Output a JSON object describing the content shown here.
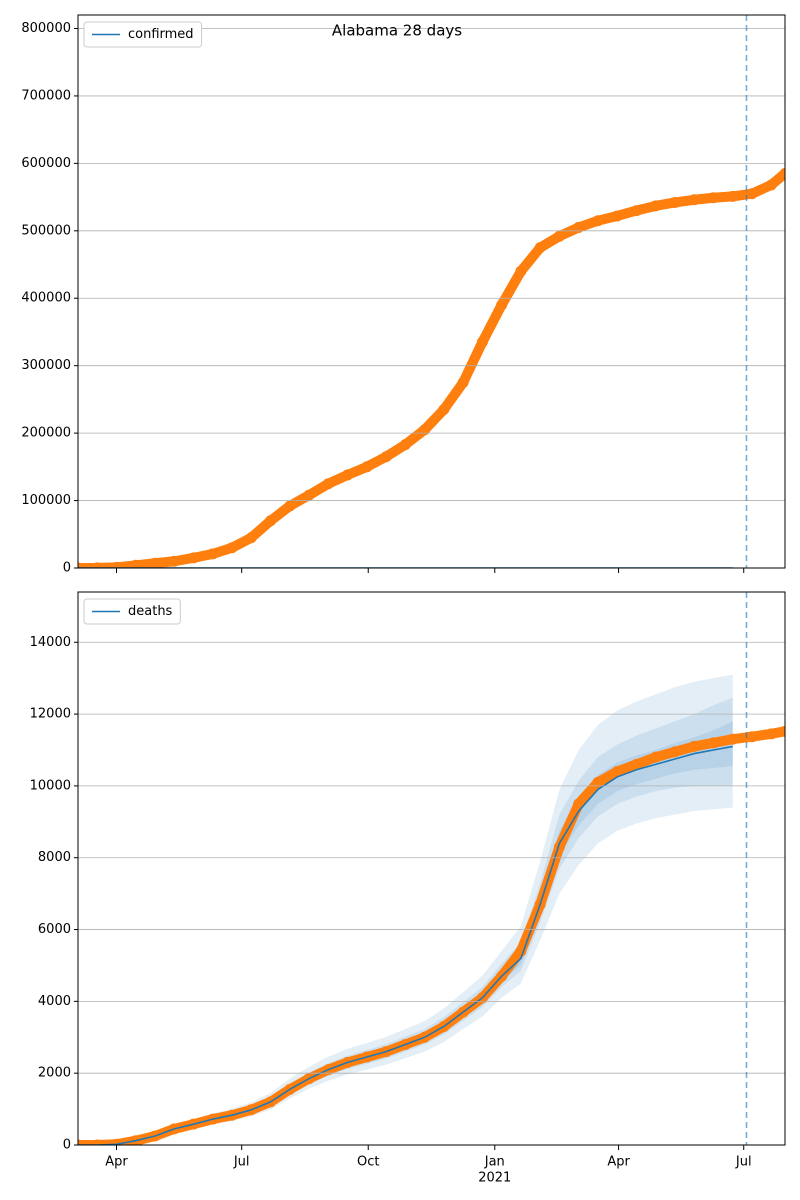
{
  "chart_data": [
    {
      "type": "line",
      "title": "Alabama 28 days",
      "x": [
        "2020-03-04",
        "2020-03-18",
        "2020-04-01",
        "2020-04-15",
        "2020-04-29",
        "2020-05-13",
        "2020-05-27",
        "2020-06-10",
        "2020-06-24",
        "2020-07-08",
        "2020-07-22",
        "2020-08-05",
        "2020-08-19",
        "2020-09-02",
        "2020-09-16",
        "2020-09-30",
        "2020-10-14",
        "2020-10-28",
        "2020-11-11",
        "2020-11-25",
        "2020-12-09",
        "2020-12-23",
        "2021-01-06",
        "2021-01-20",
        "2021-02-03",
        "2021-02-17",
        "2021-03-03",
        "2021-03-17",
        "2021-03-31",
        "2021-04-14",
        "2021-04-28",
        "2021-05-12",
        "2021-05-26",
        "2021-06-09",
        "2021-06-23",
        "2021-07-07",
        "2021-07-21",
        "2021-07-31"
      ],
      "series": [
        {
          "name": "confirmed",
          "color": "#1f77b4",
          "values": [
            0,
            0,
            0,
            0,
            0,
            0,
            0,
            0,
            0,
            0,
            0,
            0,
            0,
            0,
            0,
            0,
            0,
            0,
            0,
            0,
            0,
            0,
            0,
            0,
            0,
            0,
            0,
            0,
            0,
            0,
            0,
            0,
            0,
            0,
            0,
            null,
            null,
            null
          ]
        }
      ],
      "points": {
        "color": "#ff7f0e",
        "values": [
          0,
          100,
          1000,
          4000,
          7000,
          10000,
          15000,
          21000,
          30000,
          45000,
          70000,
          92000,
          108000,
          125000,
          138000,
          150000,
          165000,
          183000,
          205000,
          235000,
          275000,
          335000,
          390000,
          440000,
          475000,
          492000,
          505000,
          515000,
          522000,
          530000,
          537000,
          542000,
          546000,
          549000,
          551000,
          555000,
          568000,
          585000
        ]
      },
      "xlim": [
        "2020-03-04",
        "2021-07-31"
      ],
      "xticks": [
        "2020-04-01",
        "2020-07-01",
        "2020-10-01",
        "2021-01-01",
        "2021-04-01",
        "2021-07-01"
      ],
      "ylim": [
        0,
        820000
      ],
      "yticks": [
        0,
        100000,
        200000,
        300000,
        400000,
        500000,
        600000,
        700000,
        800000
      ],
      "grid": true,
      "legend": "upper left",
      "vline": "2021-07-03"
    },
    {
      "type": "line",
      "x": [
        "2020-03-04",
        "2020-03-18",
        "2020-04-01",
        "2020-04-15",
        "2020-04-29",
        "2020-05-13",
        "2020-05-27",
        "2020-06-10",
        "2020-06-24",
        "2020-07-08",
        "2020-07-22",
        "2020-08-05",
        "2020-08-19",
        "2020-09-02",
        "2020-09-16",
        "2020-09-30",
        "2020-10-14",
        "2020-10-28",
        "2020-11-11",
        "2020-11-25",
        "2020-12-09",
        "2020-12-23",
        "2021-01-06",
        "2021-01-20",
        "2021-02-03",
        "2021-02-17",
        "2021-03-03",
        "2021-03-17",
        "2021-03-31",
        "2021-04-14",
        "2021-04-28",
        "2021-05-12",
        "2021-05-26",
        "2021-06-09",
        "2021-06-23",
        "2021-07-07",
        "2021-07-21",
        "2021-07-31"
      ],
      "series": [
        {
          "name": "deaths",
          "color": "#1f77b4",
          "values": [
            0,
            0,
            20,
            120,
            250,
            450,
            580,
            720,
            830,
            980,
            1200,
            1550,
            1850,
            2100,
            2300,
            2450,
            2600,
            2800,
            3000,
            3300,
            3700,
            4100,
            4700,
            5200,
            6700,
            8400,
            9300,
            9900,
            10250,
            10450,
            10600,
            10750,
            10900,
            11000,
            11100,
            null,
            null,
            null
          ]
        }
      ],
      "bands": [
        {
          "lower": [
            0,
            0,
            10,
            90,
            190,
            350,
            460,
            580,
            670,
            800,
            990,
            1300,
            1570,
            1790,
            1970,
            2100,
            2240,
            2420,
            2600,
            2870,
            3230,
            3580,
            4100,
            4500,
            5700,
            7000,
            7800,
            8400,
            8750,
            8950,
            9100,
            9200,
            9300,
            9350,
            9400,
            null,
            null,
            null
          ],
          "upper": [
            0,
            0,
            30,
            160,
            320,
            560,
            720,
            880,
            1010,
            1190,
            1450,
            1850,
            2180,
            2460,
            2680,
            2840,
            3010,
            3230,
            3450,
            3800,
            4250,
            4720,
            5400,
            6100,
            7900,
            9900,
            11000,
            11700,
            12100,
            12350,
            12550,
            12750,
            12900,
            13000,
            13100,
            null,
            null,
            null
          ]
        },
        {
          "lower": [
            0,
            0,
            15,
            105,
            220,
            400,
            520,
            650,
            750,
            890,
            1100,
            1420,
            1700,
            1930,
            2120,
            2260,
            2410,
            2600,
            2800,
            3080,
            3460,
            3840,
            4400,
            4850,
            6200,
            7700,
            8550,
            9150,
            9500,
            9700,
            9850,
            9950,
            10000,
            10000,
            10000,
            null,
            null,
            null
          ],
          "upper": [
            0,
            0,
            25,
            140,
            285,
            510,
            650,
            800,
            920,
            1080,
            1320,
            1700,
            2020,
            2280,
            2490,
            2650,
            2810,
            3020,
            3230,
            3560,
            3980,
            4400,
            5050,
            5650,
            7300,
            9200,
            10150,
            10800,
            11150,
            11400,
            11600,
            11800,
            12000,
            12250,
            12450,
            null,
            null,
            null
          ]
        },
        {
          "lower": [
            0,
            0,
            18,
            112,
            235,
            425,
            550,
            685,
            790,
            935,
            1150,
            1485,
            1775,
            2015,
            2210,
            2355,
            2505,
            2700,
            2900,
            3190,
            3580,
            3970,
            4550,
            5020,
            6450,
            8050,
            8900,
            9500,
            9850,
            10050,
            10200,
            10350,
            10450,
            10500,
            10550,
            null,
            null,
            null
          ],
          "upper": [
            0,
            0,
            22,
            128,
            265,
            475,
            610,
            755,
            870,
            1025,
            1250,
            1615,
            1925,
            2185,
            2390,
            2545,
            2695,
            2900,
            3100,
            3410,
            3820,
            4230,
            4850,
            5400,
            6950,
            8750,
            9700,
            10300,
            10650,
            10850,
            11000,
            11200,
            11350,
            11550,
            11800,
            null,
            null,
            null
          ]
        }
      ],
      "points": {
        "color": "#ff7f0e",
        "values": [
          0,
          0,
          20,
          120,
          250,
          450,
          580,
          720,
          830,
          980,
          1200,
          1550,
          1850,
          2100,
          2300,
          2450,
          2600,
          2800,
          3000,
          3300,
          3700,
          4100,
          4700,
          5400,
          6700,
          8300,
          9500,
          10100,
          10400,
          10600,
          10800,
          10950,
          11100,
          11200,
          11300,
          11370,
          11450,
          11520
        ]
      },
      "xlim": [
        "2020-03-04",
        "2021-07-31"
      ],
      "xticks": [
        {
          "value": "2020-04-01",
          "label": "Apr"
        },
        {
          "value": "2020-07-01",
          "label": "Jul"
        },
        {
          "value": "2020-10-01",
          "label": "Oct"
        },
        {
          "value": "2021-01-01",
          "label": "Jan",
          "sublabel": "2021"
        },
        {
          "value": "2021-04-01",
          "label": "Apr"
        },
        {
          "value": "2021-07-01",
          "label": "Jul"
        }
      ],
      "ylim": [
        0,
        15400
      ],
      "yticks": [
        0,
        2000,
        4000,
        6000,
        8000,
        10000,
        12000,
        14000
      ],
      "grid": true,
      "legend": "upper left",
      "vline": "2021-07-03"
    }
  ]
}
